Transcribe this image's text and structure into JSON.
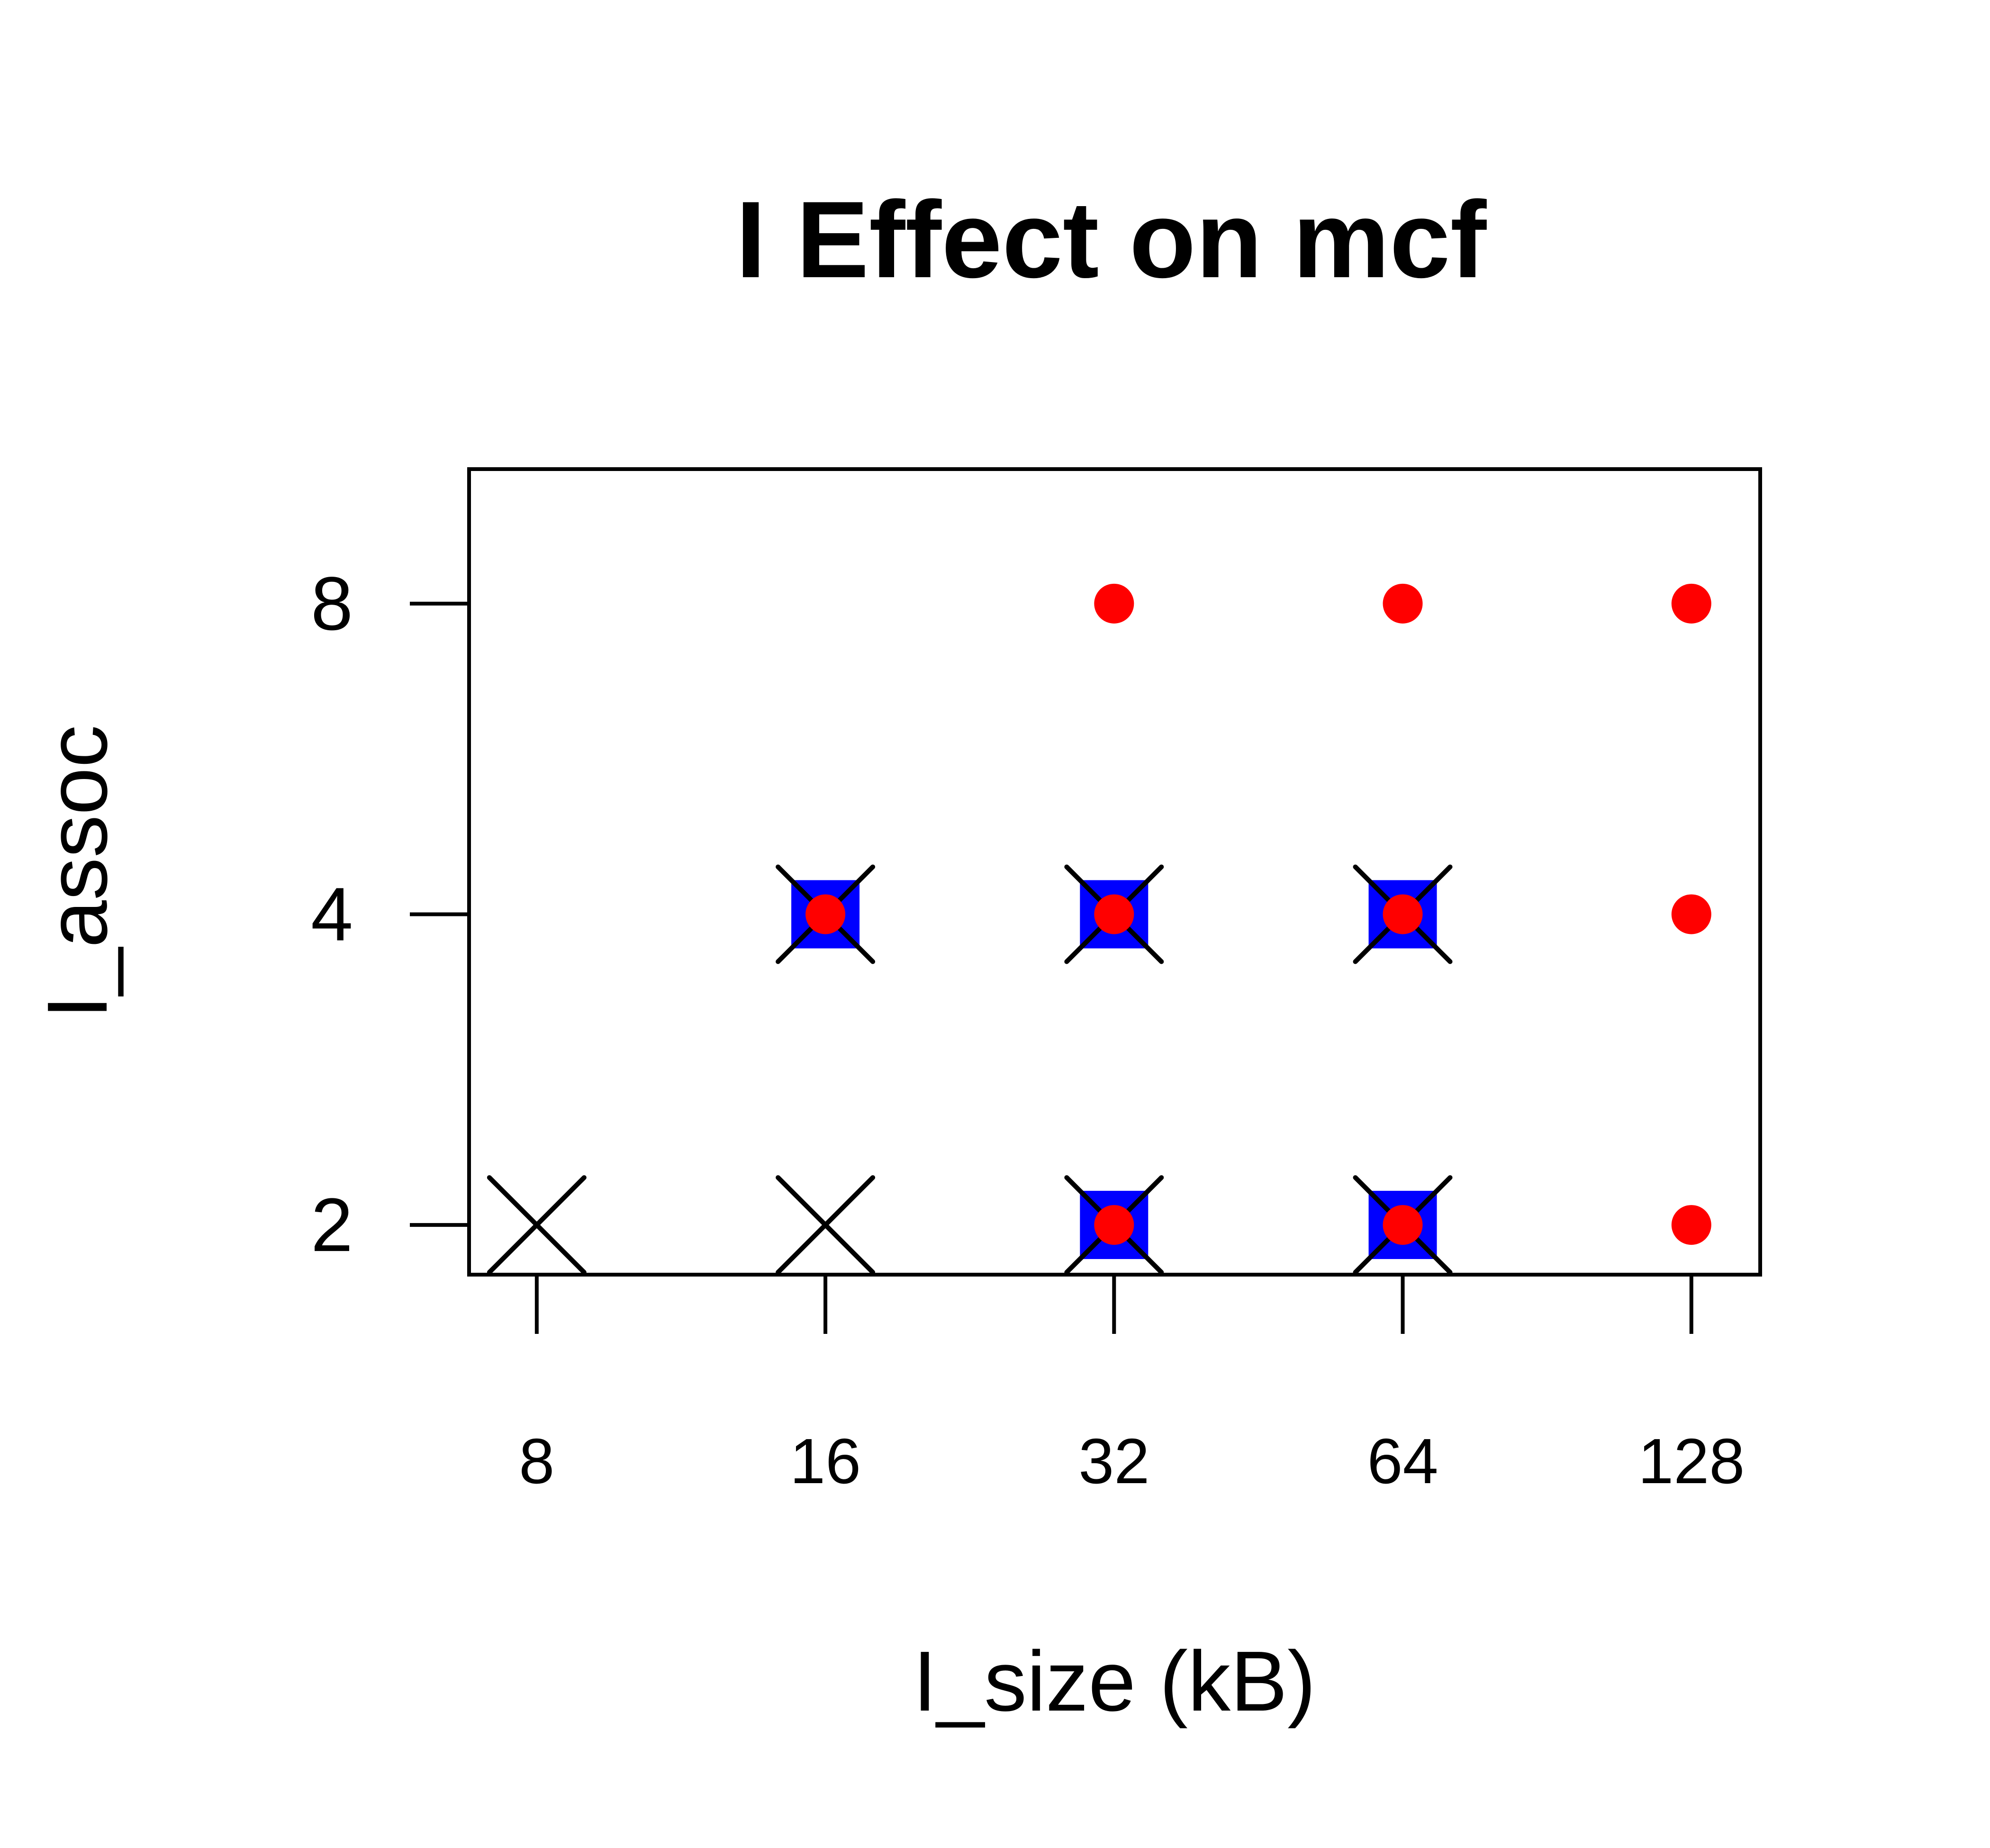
{
  "chart_data": {
    "type": "scatter",
    "title": "I Effect on mcf",
    "xlabel": "I_size (kB)",
    "ylabel": "I_assoc",
    "x_scale": "log2",
    "y_scale": "log2",
    "x_ticks": [
      "8",
      "16",
      "32",
      "64",
      "128"
    ],
    "y_ticks": [
      "2",
      "4",
      "8"
    ],
    "xlim": [
      6.8,
      151
    ],
    "ylim": [
      1.79,
      10.8
    ],
    "grid": false,
    "series": [
      {
        "marker": "blue-square",
        "color": "#0000ff",
        "points": [
          {
            "x": 16,
            "y": 4
          },
          {
            "x": 32,
            "y": 4
          },
          {
            "x": 64,
            "y": 4
          },
          {
            "x": 32,
            "y": 2
          },
          {
            "x": 64,
            "y": 2
          }
        ]
      },
      {
        "marker": "black-x",
        "color": "#000000",
        "points": [
          {
            "x": 8,
            "y": 2
          },
          {
            "x": 16,
            "y": 2
          },
          {
            "x": 32,
            "y": 2
          },
          {
            "x": 64,
            "y": 2
          },
          {
            "x": 16,
            "y": 4
          },
          {
            "x": 32,
            "y": 4
          },
          {
            "x": 64,
            "y": 4
          }
        ]
      },
      {
        "marker": "red-dot",
        "color": "#ff0000",
        "points": [
          {
            "x": 32,
            "y": 8
          },
          {
            "x": 64,
            "y": 8
          },
          {
            "x": 128,
            "y": 8
          },
          {
            "x": 16,
            "y": 4
          },
          {
            "x": 32,
            "y": 4
          },
          {
            "x": 64,
            "y": 4
          },
          {
            "x": 128,
            "y": 4
          },
          {
            "x": 32,
            "y": 2
          },
          {
            "x": 64,
            "y": 2
          },
          {
            "x": 128,
            "y": 2
          }
        ]
      }
    ]
  }
}
